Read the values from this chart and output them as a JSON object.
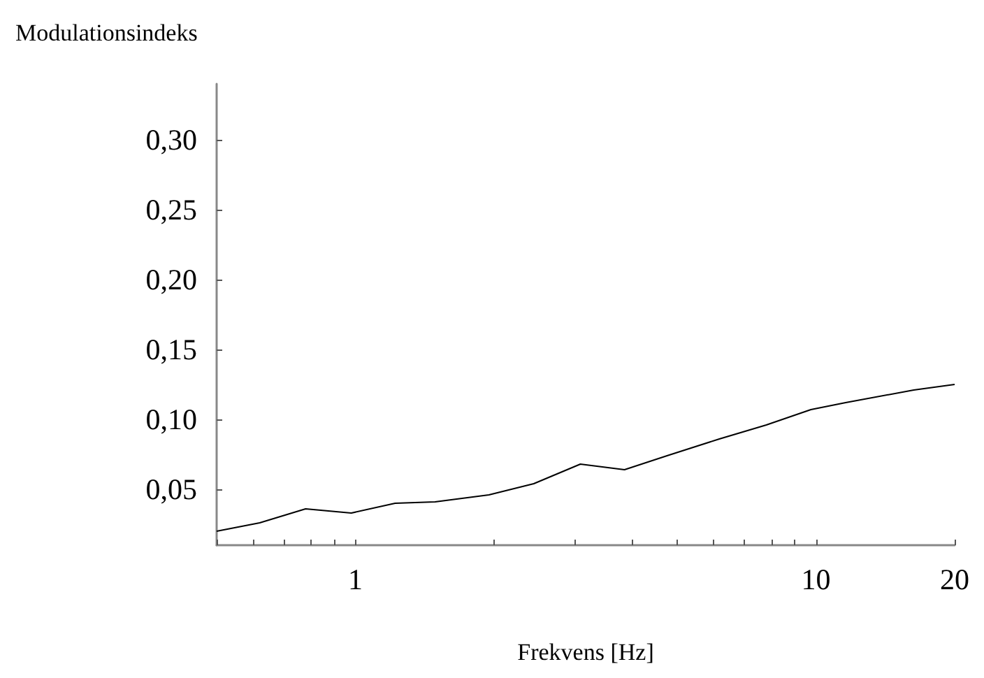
{
  "chart_data": {
    "type": "line",
    "xlabel": "Frekvens [Hz]",
    "ylabel": "Modulationsindeks",
    "log": "x",
    "grid": false,
    "marker": "none",
    "line_style": "solid",
    "xlim": [
      0.5,
      20
    ],
    "ylim": [
      0.01,
      0.34
    ],
    "xticks": [
      {
        "value": 0.5,
        "label": null
      },
      {
        "value": 0.6,
        "label": null
      },
      {
        "value": 0.7,
        "label": null
      },
      {
        "value": 0.8,
        "label": null
      },
      {
        "value": 0.9,
        "label": null
      },
      1,
      {
        "value": 2,
        "label": null
      },
      {
        "value": 3,
        "label": null
      },
      {
        "value": 4,
        "label": null
      },
      {
        "value": 5,
        "label": null
      },
      {
        "value": 6,
        "label": null
      },
      {
        "value": 7,
        "label": null
      },
      {
        "value": 8,
        "label": null
      },
      {
        "value": 9,
        "label": null
      },
      10,
      20
    ],
    "yticks": [
      {
        "value": 0.05,
        "label": "0,05"
      },
      {
        "value": 0.1,
        "label": "0,10"
      },
      {
        "value": 0.15,
        "label": "0,15"
      },
      {
        "value": 0.2,
        "label": "0,20"
      },
      {
        "value": 0.25,
        "label": "0,25"
      },
      {
        "value": 0.3,
        "label": "0,30"
      }
    ],
    "series": [
      {
        "color": "#000000",
        "x": [
          0.5,
          0.62,
          0.78,
          0.98,
          1.22,
          1.49,
          1.95,
          2.44,
          3.08,
          3.84,
          4.75,
          6.17,
          7.8,
          9.75,
          11.6,
          16.3,
          20
        ],
        "values": [
          0.02,
          0.026,
          0.036,
          0.033,
          0.04,
          0.041,
          0.046,
          0.054,
          0.068,
          0.064,
          0.074,
          0.086,
          0.096,
          0.107,
          0.112,
          0.121,
          0.125
        ]
      }
    ]
  }
}
